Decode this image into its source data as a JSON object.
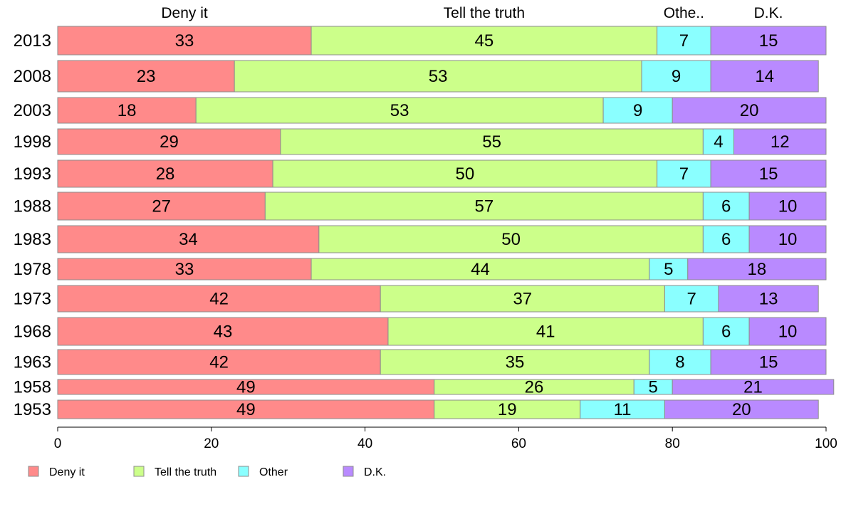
{
  "chart_data": {
    "type": "bar",
    "orientation": "horizontal",
    "stacked": true,
    "categories": [
      "2013",
      "2008",
      "2003",
      "1998",
      "1993",
      "1988",
      "1983",
      "1978",
      "1973",
      "1968",
      "1963",
      "1958",
      "1953"
    ],
    "column_headers": [
      "Deny it",
      "Tell the truth",
      "Othe..",
      "D.K."
    ],
    "series": [
      {
        "name": "Deny it",
        "color": "#ff8a8a",
        "values": [
          33,
          23,
          18,
          29,
          28,
          27,
          34,
          33,
          42,
          43,
          42,
          49,
          49
        ]
      },
      {
        "name": "Tell the truth",
        "color": "#ccff8a",
        "values": [
          45,
          53,
          53,
          55,
          50,
          57,
          50,
          44,
          37,
          41,
          35,
          26,
          19
        ]
      },
      {
        "name": "Other",
        "color": "#8affff",
        "values": [
          7,
          9,
          9,
          4,
          7,
          6,
          6,
          5,
          7,
          6,
          8,
          5,
          11
        ]
      },
      {
        "name": "D.K.",
        "color": "#b98aff",
        "values": [
          15,
          14,
          20,
          12,
          15,
          10,
          10,
          18,
          13,
          10,
          15,
          21,
          20
        ]
      }
    ],
    "xlim": [
      0,
      100
    ],
    "xticks": [
      0,
      20,
      40,
      60,
      80,
      100
    ],
    "title": "",
    "xlabel": "",
    "ylabel": "",
    "legend_position": "bottom-left",
    "grid": false
  }
}
